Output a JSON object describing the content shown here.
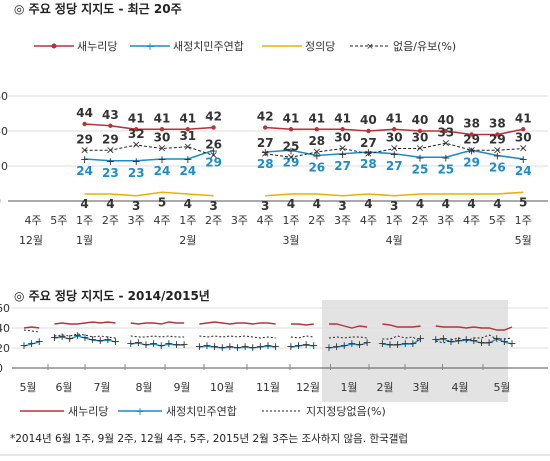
{
  "top": {
    "title": "◎ 주요 정당 지지도 - 최근 20주",
    "title_icon": "target-icon"
  },
  "bottom": {
    "title": "◎ 주요 정당 지지도 - 2014/2015년",
    "footnote": "*2014년 6월 1주, 9월 2주, 12월 4주, 5주, 2015년 2월 3주는 조사하지 않음. 한국갤럽"
  },
  "colors": {
    "saenuri": "#b5343a",
    "minju": "#1b8ec9",
    "justice": "#e8b200",
    "none": "#222222",
    "shade": "#d9d9d9"
  },
  "chart_data": [
    {
      "type": "line",
      "title": "주요 정당 지지도 - 최근 20주",
      "y_tick_labels": [
        "0",
        "20",
        "40",
        "60"
      ],
      "ylim": [
        0,
        60
      ],
      "grid": true,
      "legend": "top",
      "x_tick_labels": [
        "4주",
        "5주",
        "1주",
        "2주",
        "3주",
        "4주",
        "1주",
        "2주",
        "3주",
        "4주",
        "1주",
        "2주",
        "3주",
        "4주",
        "1주",
        "2주",
        "3주",
        "4주",
        "5주",
        "1주"
      ],
      "month_labels": [
        "12월",
        "1월",
        "2월",
        "3월",
        "4월",
        "5월"
      ],
      "categories": [
        "4주",
        "5주",
        "1주",
        "2주",
        "3주",
        "4주",
        "1주",
        "2주",
        "3주",
        "4주",
        "1주",
        "2주",
        "3주",
        "4주",
        "1주",
        "2주",
        "3주",
        "4주",
        "5주",
        "1주"
      ],
      "series": [
        {
          "name": "새누리당",
          "values": [
            null,
            null,
            44,
            43,
            41,
            41,
            41,
            42,
            null,
            42,
            41,
            41,
            41,
            40,
            41,
            40,
            40,
            38,
            38,
            41
          ]
        },
        {
          "name": "새정치민주연합",
          "values": [
            null,
            null,
            24,
            23,
            23,
            24,
            24,
            29,
            null,
            28,
            29,
            26,
            27,
            28,
            27,
            25,
            25,
            29,
            26,
            24
          ]
        },
        {
          "name": "정의당",
          "values": [
            null,
            null,
            4,
            4,
            3,
            5,
            4,
            3,
            null,
            3,
            4,
            4,
            3,
            4,
            3,
            4,
            4,
            4,
            4,
            5
          ]
        },
        {
          "name": "없음/유보(%)",
          "values": [
            null,
            null,
            29,
            29,
            32,
            30,
            31,
            26,
            null,
            27,
            25,
            28,
            30,
            27,
            30,
            30,
            33,
            29,
            29,
            30
          ]
        }
      ]
    },
    {
      "type": "line",
      "title": "주요 정당 지지도 - 2014/2015년",
      "y_tick_labels": [
        "0",
        "20",
        "40",
        "60"
      ],
      "ylim": [
        0,
        60
      ],
      "grid": true,
      "legend": "bottom",
      "month_labels": [
        "5월",
        "6월",
        "7월",
        "8월",
        "9월",
        "10월",
        "11월",
        "12월",
        "1월",
        "2월",
        "3월",
        "4월",
        "5월"
      ],
      "series": [
        {
          "name": "새누리당",
          "values": [
            40,
            41,
            40,
            null,
            44,
            45,
            44,
            44,
            45,
            46,
            45,
            46,
            45,
            null,
            45,
            44,
            45,
            45,
            44,
            46,
            45,
            45,
            null,
            44,
            45,
            46,
            45,
            44,
            45,
            45,
            44,
            45,
            45,
            44,
            null,
            44,
            44,
            43,
            44,
            null,
            44,
            44,
            42,
            40,
            42,
            41,
            null,
            44,
            43,
            41,
            41,
            41,
            42,
            null,
            42,
            41,
            41,
            41,
            40,
            41,
            40,
            40,
            38,
            38,
            41
          ]
        },
        {
          "name": "새정치민주연합",
          "values": [
            22,
            24,
            26,
            null,
            30,
            31,
            29,
            32,
            30,
            28,
            27,
            28,
            26,
            null,
            24,
            25,
            23,
            24,
            22,
            24,
            23,
            23,
            null,
            21,
            22,
            21,
            20,
            21,
            20,
            21,
            20,
            21,
            22,
            21,
            null,
            21,
            22,
            23,
            22,
            null,
            20,
            21,
            22,
            24,
            23,
            25,
            null,
            24,
            23,
            23,
            24,
            24,
            29,
            null,
            28,
            29,
            26,
            27,
            28,
            27,
            25,
            25,
            29,
            26,
            24
          ]
        },
        {
          "name": "지지정당없음(%)",
          "values": [
            38,
            37,
            36,
            null,
            32,
            33,
            32,
            34,
            33,
            31,
            32,
            31,
            30,
            null,
            32,
            31,
            31,
            32,
            31,
            32,
            31,
            31,
            null,
            32,
            31,
            32,
            31,
            32,
            31,
            32,
            31,
            30,
            31,
            30,
            null,
            31,
            30,
            32,
            31,
            null,
            30,
            31,
            30,
            31,
            31,
            30,
            null,
            29,
            29,
            32,
            30,
            31,
            26,
            null,
            27,
            25,
            28,
            30,
            27,
            30,
            30,
            33,
            29,
            29,
            30
          ]
        }
      ]
    }
  ]
}
